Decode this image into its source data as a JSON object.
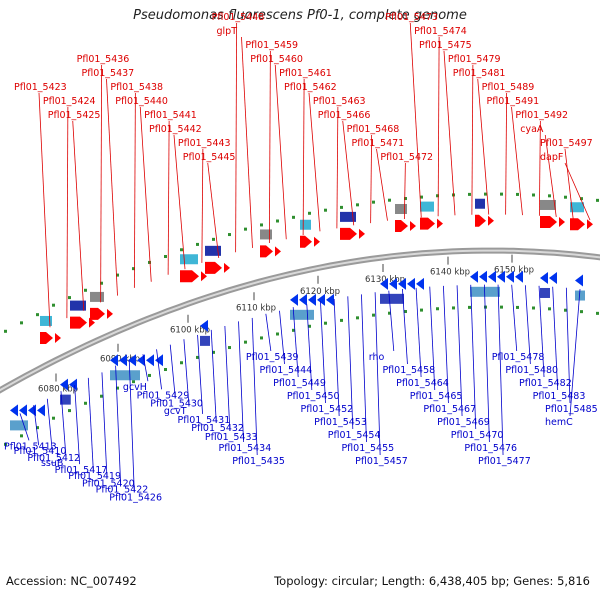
{
  "title": "Pseudomonas fluorescens Pf0-1, complete genome",
  "footer": {
    "accession": "Accession: NC_007492",
    "summary": "Topology: circular; Length: 6,438,405 bp; Genes: 5,816"
  },
  "colors": {
    "forward_label": "#dd0000",
    "reverse_label": "#0000cc",
    "forward_gene": "#ff0000",
    "reverse_gene": "#0033ee",
    "backbone": "#9a9a9a",
    "tick": "#2f8f2f"
  },
  "ticks": [
    "6080 kbp",
    "6090 kbp",
    "6100 kbp",
    "6110 kbp",
    "6120 kbp",
    "6130 kbp",
    "6140 kbp",
    "6150 kbp"
  ],
  "forward_labels": [
    "Pfl01_5423",
    "Pfl01_5424",
    "Pfl01_5425",
    "Pfl01_5436",
    "Pfl01_5437",
    "Pfl01_5438",
    "Pfl01_5440",
    "Pfl01_5441",
    "Pfl01_5442",
    "Pfl01_5443",
    "Pfl01_5445",
    "Pfl01_5448",
    "glpT",
    "Pfl01_5459",
    "Pfl01_5460",
    "Pfl01_5461",
    "Pfl01_5462",
    "Pfl01_5463",
    "Pfl01_5466",
    "Pfl01_5468",
    "Pfl01_5471",
    "Pfl01_5472",
    "Pfl01_5473",
    "Pfl01_5474",
    "Pfl01_5475",
    "Pfl01_5479",
    "Pfl01_5481",
    "Pfl01_5489",
    "Pfl01_5491",
    "Pfl01_5492",
    "cyaA",
    "Pfl01_5497",
    "dapF"
  ],
  "reverse_labels": [
    "Pfl01_5413",
    "Pfl01_5410",
    "Pfl01_5412",
    "ssuB",
    "Pfl01_5417",
    "Pfl01_5419",
    "Pfl01_5420",
    "Pfl01_5422",
    "Pfl01_5426",
    "gcvH",
    "Pfl01_5429",
    "Pfl01_5430",
    "gcvT",
    "Pfl01_5431",
    "Pfl01_5432",
    "Pfl01_5433",
    "Pfl01_5434",
    "Pfl01_5435",
    "Pfl01_5439",
    "Pfl01_5444",
    "Pfl01_5449",
    "Pfl01_5450",
    "Pfl01_5452",
    "Pfl01_5453",
    "Pfl01_5454",
    "Pfl01_5455",
    "Pfl01_5457",
    "rho",
    "Pfl01_5458",
    "Pfl01_5464",
    "Pfl01_5465",
    "Pfl01_5467",
    "Pfl01_5469",
    "Pfl01_5470",
    "Pfl01_5476",
    "Pfl01_5477",
    "Pfl01_5478",
    "Pfl01_5480",
    "Pfl01_5482",
    "Pfl01_5483",
    "Pfl01_5485",
    "hemC"
  ]
}
